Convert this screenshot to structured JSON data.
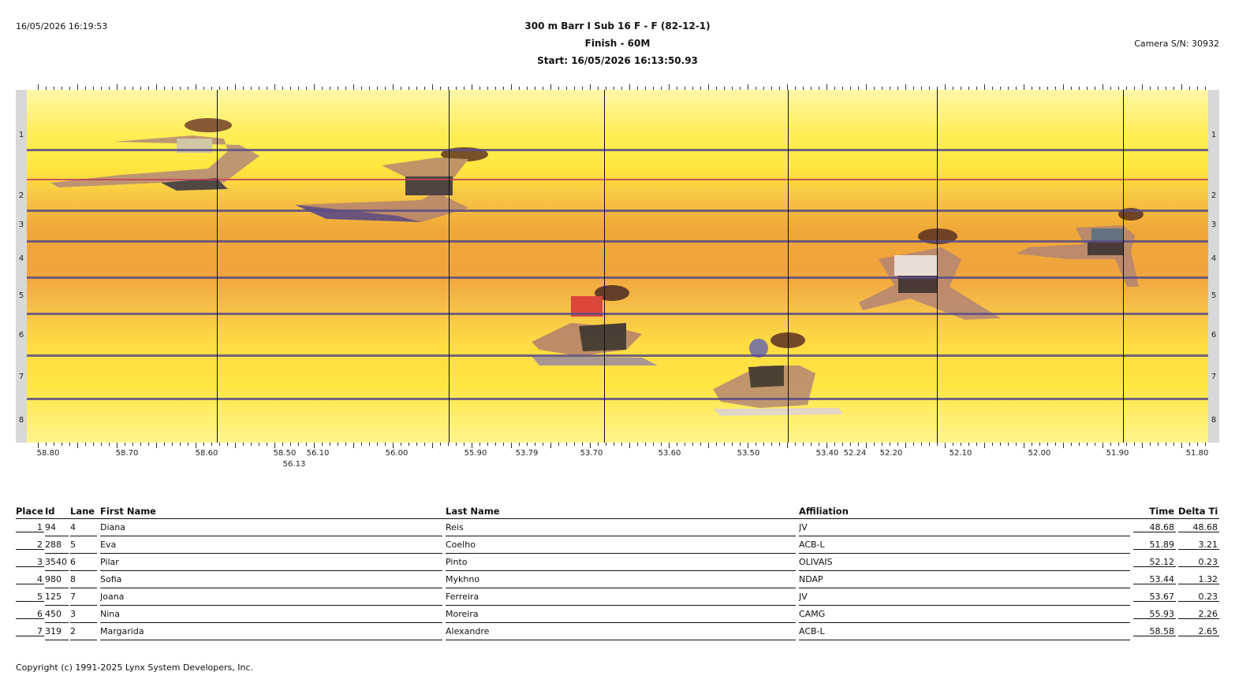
{
  "header": {
    "datetime": "16/05/2026 16:19:53",
    "title_line1": "300 m Barr I Sub 16 F - F (82-12-1)",
    "title_line2": "Finish - 60M",
    "title_line3": "Start: 16/05/2026 16:13:50.93",
    "camera": "Camera S/N: 30932"
  },
  "photo": {
    "lane_numbers": [
      "1",
      "2",
      "3",
      "4",
      "5",
      "6",
      "7",
      "8"
    ],
    "time_labels": [
      "58.80",
      "58.70",
      "58.60",
      "58.50",
      "56.10",
      "56.00",
      "55.90",
      "53.79",
      "53.70",
      "53.60",
      "53.50",
      "53.40",
      "52.24",
      "52.20",
      "52.10",
      "52.00",
      "51.90",
      "51.80"
    ],
    "time_label_sub": "56.13",
    "colors": {
      "bg_top": "#fff7a8",
      "bg_mid": "#efa534",
      "lane_line": "#5a4e86"
    }
  },
  "results": {
    "headers": {
      "place": "Place",
      "id": "Id",
      "lane": "Lane",
      "first": "First Name",
      "last": "Last Name",
      "affil": "Affiliation",
      "time": "Time",
      "delta": "Delta Ti"
    },
    "rows": [
      {
        "place": "1",
        "id": "94",
        "lane": "4",
        "first": "Diana",
        "last": "Reis",
        "affil": "JV",
        "time": "48.68",
        "delta": "48.68"
      },
      {
        "place": "2",
        "id": "288",
        "lane": "5",
        "first": "Eva",
        "last": "Coelho",
        "affil": "ACB-L",
        "time": "51.89",
        "delta": "3.21"
      },
      {
        "place": "3",
        "id": "3540",
        "lane": "6",
        "first": "Pilar",
        "last": "Pinto",
        "affil": "OLIVAIS",
        "time": "52.12",
        "delta": "0.23"
      },
      {
        "place": "4",
        "id": "980",
        "lane": "8",
        "first": "Sofia",
        "last": "Mykhno",
        "affil": "NDAP",
        "time": "53.44",
        "delta": "1.32"
      },
      {
        "place": "5",
        "id": "125",
        "lane": "7",
        "first": "Joana",
        "last": "Ferreira",
        "affil": "JV",
        "time": "53.67",
        "delta": "0.23"
      },
      {
        "place": "6",
        "id": "450",
        "lane": "3",
        "first": "Nina",
        "last": "Moreira",
        "affil": "CAMG",
        "time": "55.93",
        "delta": "2.26"
      },
      {
        "place": "7",
        "id": "319",
        "lane": "2",
        "first": "Margarida",
        "last": "Alexandre",
        "affil": "ACB-L",
        "time": "58.58",
        "delta": "2.65"
      }
    ]
  },
  "footer": {
    "copyright": "Copyright (c) 1991-2025 Lynx System Developers, Inc."
  }
}
